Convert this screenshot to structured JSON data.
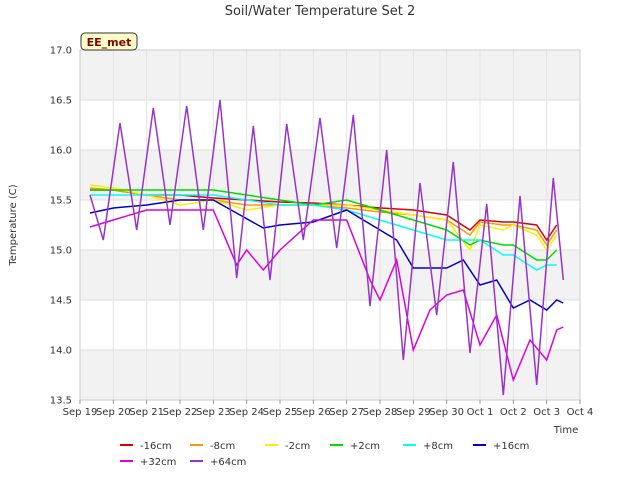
{
  "chart_data": {
    "type": "line",
    "title": "Soil/Water Temperature Set 2",
    "xlabel": "Time",
    "ylabel": "Temperature (C)",
    "ylim": [
      13.5,
      17.0
    ],
    "xlim_days": [
      0,
      15
    ],
    "station_label": "EE_met",
    "y_ticks": [
      "13.5",
      "14.0",
      "14.5",
      "15.0",
      "15.5",
      "16.0",
      "16.5",
      "17.0"
    ],
    "x_ticks": [
      "Sep 19",
      "Sep 20",
      "Sep 21",
      "Sep 22",
      "Sep 23",
      "Sep 24",
      "Sep 25",
      "Sep 26",
      "Sep 27",
      "Sep 28",
      "Sep 29",
      "Sep 30",
      "Oct 1",
      "Oct 2",
      "Oct 3",
      "Oct 4"
    ],
    "legend_position": "bottom",
    "grid": true,
    "series": [
      {
        "name": "-16cm",
        "color": "#dd0000",
        "values": [
          [
            0.3,
            15.6
          ],
          [
            1,
            15.6
          ],
          [
            2,
            15.55
          ],
          [
            3,
            15.55
          ],
          [
            4,
            15.52
          ],
          [
            5,
            15.5
          ],
          [
            6,
            15.48
          ],
          [
            7,
            15.47
          ],
          [
            8,
            15.45
          ],
          [
            9,
            15.42
          ],
          [
            10,
            15.4
          ],
          [
            11,
            15.35
          ],
          [
            11.7,
            15.2
          ],
          [
            12,
            15.3
          ],
          [
            12.7,
            15.28
          ],
          [
            13,
            15.28
          ],
          [
            13.7,
            15.25
          ],
          [
            14,
            15.1
          ],
          [
            14.3,
            15.25
          ]
        ]
      },
      {
        "name": "-8cm",
        "color": "#ff9900",
        "values": [
          [
            0.3,
            15.62
          ],
          [
            1,
            15.6
          ],
          [
            2,
            15.55
          ],
          [
            3,
            15.5
          ],
          [
            4,
            15.5
          ],
          [
            5,
            15.45
          ],
          [
            6,
            15.45
          ],
          [
            7,
            15.45
          ],
          [
            8,
            15.42
          ],
          [
            9,
            15.38
          ],
          [
            10,
            15.35
          ],
          [
            11,
            15.3
          ],
          [
            11.7,
            15.15
          ],
          [
            12,
            15.28
          ],
          [
            12.7,
            15.25
          ],
          [
            13,
            15.25
          ],
          [
            13.7,
            15.2
          ],
          [
            14,
            15.05
          ],
          [
            14.3,
            15.2
          ]
        ]
      },
      {
        "name": "-2cm",
        "color": "#ffee00",
        "values": [
          [
            0.3,
            15.65
          ],
          [
            1,
            15.62
          ],
          [
            2,
            15.55
          ],
          [
            3,
            15.45
          ],
          [
            4,
            15.5
          ],
          [
            5,
            15.4
          ],
          [
            6,
            15.45
          ],
          [
            7,
            15.45
          ],
          [
            8,
            15.45
          ],
          [
            9,
            15.4
          ],
          [
            10,
            15.35
          ],
          [
            11,
            15.3
          ],
          [
            11.7,
            15.0
          ],
          [
            12,
            15.25
          ],
          [
            12.7,
            15.2
          ],
          [
            13,
            15.25
          ],
          [
            13.7,
            15.15
          ],
          [
            14,
            15.0
          ],
          [
            14.3,
            15.15
          ]
        ]
      },
      {
        "name": "+2cm",
        "color": "#00dd00",
        "values": [
          [
            0.3,
            15.6
          ],
          [
            1,
            15.6
          ],
          [
            2,
            15.6
          ],
          [
            3,
            15.6
          ],
          [
            4,
            15.6
          ],
          [
            5,
            15.55
          ],
          [
            6,
            15.5
          ],
          [
            7,
            15.45
          ],
          [
            8,
            15.5
          ],
          [
            9,
            15.4
          ],
          [
            10,
            15.3
          ],
          [
            11,
            15.2
          ],
          [
            11.7,
            15.05
          ],
          [
            12,
            15.1
          ],
          [
            12.7,
            15.05
          ],
          [
            13,
            15.05
          ],
          [
            13.7,
            14.9
          ],
          [
            14,
            14.9
          ],
          [
            14.3,
            15.0
          ]
        ]
      },
      {
        "name": "+8cm",
        "color": "#00ffff",
        "values": [
          [
            0.3,
            15.55
          ],
          [
            1,
            15.55
          ],
          [
            2,
            15.55
          ],
          [
            3,
            15.55
          ],
          [
            4,
            15.55
          ],
          [
            5,
            15.5
          ],
          [
            6,
            15.45
          ],
          [
            7,
            15.45
          ],
          [
            8,
            15.4
          ],
          [
            9,
            15.3
          ],
          [
            10,
            15.2
          ],
          [
            11,
            15.1
          ],
          [
            11.7,
            15.1
          ],
          [
            12,
            15.1
          ],
          [
            12.7,
            14.95
          ],
          [
            13,
            14.95
          ],
          [
            13.7,
            14.8
          ],
          [
            14,
            14.85
          ],
          [
            14.3,
            14.85
          ]
        ]
      },
      {
        "name": "+16cm",
        "color": "#0000cc",
        "values": [
          [
            0.3,
            15.37
          ],
          [
            1,
            15.42
          ],
          [
            2,
            15.45
          ],
          [
            3,
            15.5
          ],
          [
            4,
            15.5
          ],
          [
            4.8,
            15.35
          ],
          [
            5.5,
            15.22
          ],
          [
            6,
            15.25
          ],
          [
            7,
            15.28
          ],
          [
            8,
            15.4
          ],
          [
            8.5,
            15.3
          ],
          [
            9,
            15.2
          ],
          [
            9.5,
            15.1
          ],
          [
            10,
            14.82
          ],
          [
            11,
            14.82
          ],
          [
            11.5,
            14.9
          ],
          [
            12,
            14.65
          ],
          [
            12.5,
            14.7
          ],
          [
            13,
            14.42
          ],
          [
            13.5,
            14.5
          ],
          [
            14,
            14.4
          ],
          [
            14.3,
            14.5
          ],
          [
            14.5,
            14.47
          ]
        ]
      },
      {
        "name": "+32cm",
        "color": "#dd00dd",
        "values": [
          [
            0.3,
            15.23
          ],
          [
            1,
            15.3
          ],
          [
            2,
            15.4
          ],
          [
            3,
            15.4
          ],
          [
            4,
            15.4
          ],
          [
            4.7,
            14.85
          ],
          [
            5,
            15.0
          ],
          [
            5.5,
            14.8
          ],
          [
            6,
            15.0
          ],
          [
            7,
            15.3
          ],
          [
            8,
            15.3
          ],
          [
            8.7,
            14.7
          ],
          [
            9,
            14.5
          ],
          [
            9.5,
            14.9
          ],
          [
            10,
            14.0
          ],
          [
            10.5,
            14.4
          ],
          [
            11,
            14.55
          ],
          [
            11.5,
            14.6
          ],
          [
            12,
            14.05
          ],
          [
            12.5,
            14.35
          ],
          [
            13,
            13.7
          ],
          [
            13.5,
            14.1
          ],
          [
            14,
            13.9
          ],
          [
            14.3,
            14.2
          ],
          [
            14.5,
            14.23
          ]
        ]
      },
      {
        "name": "+64cm",
        "color": "#9933cc",
        "values": [
          [
            0.3,
            15.55
          ],
          [
            0.7,
            15.1
          ],
          [
            1.2,
            16.27
          ],
          [
            1.7,
            15.2
          ],
          [
            2.2,
            16.42
          ],
          [
            2.7,
            15.25
          ],
          [
            3.2,
            16.44
          ],
          [
            3.7,
            15.2
          ],
          [
            4.2,
            16.5
          ],
          [
            4.7,
            14.72
          ],
          [
            5.2,
            16.24
          ],
          [
            5.7,
            14.7
          ],
          [
            6.2,
            16.26
          ],
          [
            6.7,
            15.1
          ],
          [
            7.2,
            16.32
          ],
          [
            7.7,
            15.02
          ],
          [
            8.2,
            16.35
          ],
          [
            8.7,
            14.44
          ],
          [
            9.2,
            16.0
          ],
          [
            9.7,
            13.9
          ],
          [
            10.2,
            15.67
          ],
          [
            10.7,
            14.35
          ],
          [
            11.2,
            15.88
          ],
          [
            11.7,
            13.97
          ],
          [
            12.2,
            15.46
          ],
          [
            12.7,
            13.55
          ],
          [
            13.2,
            15.54
          ],
          [
            13.7,
            13.65
          ],
          [
            14.2,
            15.72
          ],
          [
            14.5,
            14.7
          ]
        ]
      }
    ]
  }
}
